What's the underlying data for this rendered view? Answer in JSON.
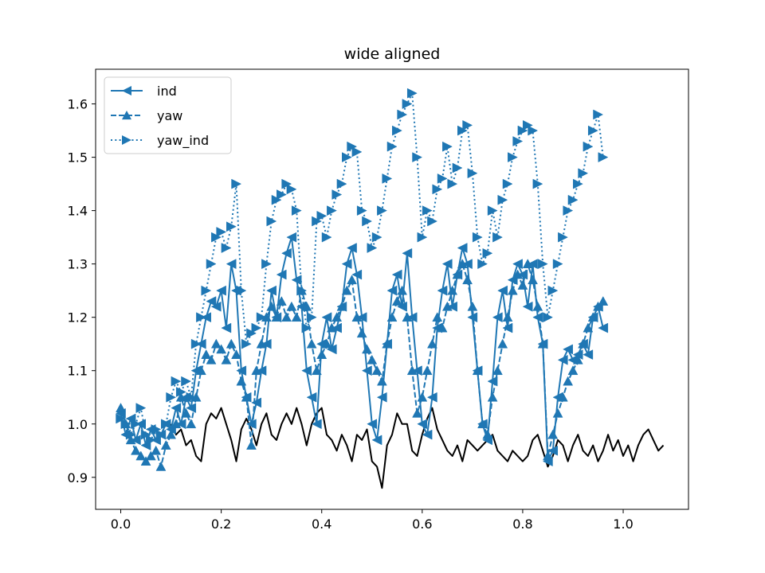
{
  "chart_data": {
    "type": "line",
    "title": "wide aligned",
    "xlabel": "",
    "ylabel": "",
    "xlim": [
      -0.05,
      1.13
    ],
    "ylim": [
      0.84,
      1.665
    ],
    "xticks": [
      0.0,
      0.2,
      0.4,
      0.6,
      0.8,
      1.0
    ],
    "xtick_labels": [
      "0.0",
      "0.2",
      "0.4",
      "0.6",
      "0.8",
      "1.0"
    ],
    "yticks": [
      0.9,
      1.0,
      1.1,
      1.2,
      1.3,
      1.4,
      1.5,
      1.6
    ],
    "ytick_labels": [
      "0.9",
      "1.0",
      "1.1",
      "1.2",
      "1.3",
      "1.4",
      "1.5",
      "1.6"
    ],
    "grid": false,
    "legend_position": "upper-left",
    "series": [
      {
        "name": "ind",
        "color": "#1f77b4",
        "linestyle": "solid",
        "marker": "triangle-left",
        "x": [
          0.0,
          0.01,
          0.02,
          0.03,
          0.04,
          0.05,
          0.06,
          0.07,
          0.08,
          0.09,
          0.1,
          0.11,
          0.12,
          0.13,
          0.14,
          0.15,
          0.16,
          0.17,
          0.18,
          0.19,
          0.2,
          0.21,
          0.22,
          0.23,
          0.24,
          0.25,
          0.26,
          0.27,
          0.28,
          0.29,
          0.3,
          0.31,
          0.32,
          0.33,
          0.34,
          0.35,
          0.36,
          0.37,
          0.38,
          0.39,
          0.4,
          0.41,
          0.42,
          0.43,
          0.44,
          0.45,
          0.46,
          0.47,
          0.48,
          0.49,
          0.5,
          0.51,
          0.52,
          0.53,
          0.54,
          0.55,
          0.56,
          0.57,
          0.58,
          0.59,
          0.6,
          0.61,
          0.62,
          0.63,
          0.64,
          0.65,
          0.66,
          0.67,
          0.68,
          0.69,
          0.7,
          0.71,
          0.72,
          0.73,
          0.74,
          0.75,
          0.76,
          0.77,
          0.78,
          0.79,
          0.8,
          0.81,
          0.82,
          0.83,
          0.84,
          0.85,
          0.86,
          0.87,
          0.88,
          0.89,
          0.9,
          0.91,
          0.92,
          0.93,
          0.94,
          0.95,
          0.96
        ],
        "y": [
          1.02,
          0.98,
          1.01,
          0.97,
          1.0,
          0.96,
          0.99,
          0.97,
          0.98,
          1.0,
          0.99,
          1.03,
          1.0,
          1.05,
          1.03,
          1.1,
          1.15,
          1.2,
          1.23,
          1.22,
          1.25,
          1.18,
          1.3,
          1.25,
          1.1,
          1.05,
          1.0,
          1.04,
          1.1,
          1.15,
          1.25,
          1.2,
          1.28,
          1.32,
          1.35,
          1.27,
          1.22,
          1.1,
          1.05,
          1.0,
          1.15,
          1.2,
          1.14,
          1.18,
          1.22,
          1.3,
          1.33,
          1.28,
          1.2,
          1.1,
          1.0,
          0.97,
          1.05,
          1.15,
          1.25,
          1.28,
          1.22,
          1.32,
          1.2,
          1.1,
          1.0,
          0.98,
          1.05,
          1.18,
          1.25,
          1.3,
          1.22,
          1.28,
          1.33,
          1.3,
          1.2,
          1.1,
          1.0,
          0.97,
          1.08,
          1.2,
          1.25,
          1.18,
          1.27,
          1.3,
          1.28,
          1.22,
          1.3,
          1.2,
          1.15,
          0.93,
          0.95,
          1.05,
          1.12,
          1.14,
          1.12,
          1.13,
          1.15,
          1.13,
          1.2,
          1.22,
          1.18
        ]
      },
      {
        "name": "yaw",
        "color": "#1f77b4",
        "linestyle": "dashed",
        "marker": "triangle-up",
        "x": [
          0.0,
          0.01,
          0.02,
          0.03,
          0.04,
          0.05,
          0.06,
          0.07,
          0.08,
          0.09,
          0.1,
          0.11,
          0.12,
          0.13,
          0.14,
          0.15,
          0.16,
          0.17,
          0.18,
          0.19,
          0.2,
          0.21,
          0.22,
          0.23,
          0.24,
          0.25,
          0.26,
          0.27,
          0.28,
          0.29,
          0.3,
          0.31,
          0.32,
          0.33,
          0.34,
          0.35,
          0.36,
          0.37,
          0.38,
          0.39,
          0.4,
          0.41,
          0.42,
          0.43,
          0.44,
          0.45,
          0.46,
          0.47,
          0.48,
          0.49,
          0.5,
          0.51,
          0.52,
          0.53,
          0.54,
          0.55,
          0.56,
          0.57,
          0.58,
          0.59,
          0.6,
          0.61,
          0.62,
          0.63,
          0.64,
          0.65,
          0.66,
          0.67,
          0.68,
          0.69,
          0.7,
          0.71,
          0.72,
          0.73,
          0.74,
          0.75,
          0.76,
          0.77,
          0.78,
          0.79,
          0.8,
          0.81,
          0.82,
          0.83,
          0.84,
          0.85,
          0.86,
          0.87,
          0.88,
          0.89,
          0.9,
          0.91,
          0.92,
          0.93,
          0.94,
          0.95,
          0.96
        ],
        "y": [
          1.03,
          1.0,
          0.97,
          0.95,
          0.94,
          0.93,
          0.94,
          0.95,
          0.92,
          0.96,
          0.98,
          1.0,
          1.05,
          1.02,
          1.0,
          1.05,
          1.1,
          1.13,
          1.12,
          1.15,
          1.14,
          1.12,
          1.15,
          1.13,
          1.08,
          1.05,
          0.96,
          1.1,
          1.15,
          1.2,
          1.22,
          1.2,
          1.23,
          1.2,
          1.22,
          1.2,
          1.25,
          1.22,
          1.15,
          1.1,
          1.13,
          1.15,
          1.18,
          1.2,
          1.22,
          1.25,
          1.27,
          1.2,
          1.17,
          1.14,
          1.12,
          1.1,
          1.08,
          1.15,
          1.2,
          1.23,
          1.25,
          1.2,
          1.1,
          1.02,
          1.05,
          1.1,
          1.15,
          1.2,
          1.18,
          1.22,
          1.25,
          1.28,
          1.3,
          1.27,
          1.22,
          1.1,
          1.0,
          0.98,
          1.05,
          1.1,
          1.15,
          1.2,
          1.25,
          1.28,
          1.26,
          1.3,
          1.27,
          1.22,
          1.15,
          0.94,
          0.98,
          1.02,
          1.05,
          1.08,
          1.1,
          1.12,
          1.15,
          1.18,
          1.2,
          1.22,
          1.23
        ]
      },
      {
        "name": "yaw_ind",
        "color": "#1f77b4",
        "linestyle": "dotted",
        "marker": "triangle-right",
        "x": [
          0.0,
          0.01,
          0.02,
          0.03,
          0.04,
          0.05,
          0.06,
          0.07,
          0.08,
          0.09,
          0.1,
          0.11,
          0.12,
          0.13,
          0.14,
          0.15,
          0.16,
          0.17,
          0.18,
          0.19,
          0.2,
          0.21,
          0.22,
          0.23,
          0.24,
          0.25,
          0.26,
          0.27,
          0.28,
          0.29,
          0.3,
          0.31,
          0.32,
          0.33,
          0.34,
          0.35,
          0.36,
          0.37,
          0.38,
          0.39,
          0.4,
          0.41,
          0.42,
          0.43,
          0.44,
          0.45,
          0.46,
          0.47,
          0.48,
          0.49,
          0.5,
          0.51,
          0.52,
          0.53,
          0.54,
          0.55,
          0.56,
          0.57,
          0.58,
          0.59,
          0.6,
          0.61,
          0.62,
          0.63,
          0.64,
          0.65,
          0.66,
          0.67,
          0.68,
          0.69,
          0.7,
          0.71,
          0.72,
          0.73,
          0.74,
          0.75,
          0.76,
          0.77,
          0.78,
          0.79,
          0.8,
          0.81,
          0.82,
          0.83,
          0.84,
          0.85,
          0.86,
          0.87,
          0.88,
          0.89,
          0.9,
          0.91,
          0.92,
          0.93,
          0.94,
          0.95,
          0.96
        ],
        "y": [
          1.01,
          1.0,
          0.98,
          1.0,
          1.03,
          0.98,
          0.97,
          0.99,
          0.98,
          1.0,
          1.05,
          1.08,
          1.06,
          1.08,
          1.05,
          1.15,
          1.2,
          1.25,
          1.3,
          1.35,
          1.36,
          1.33,
          1.37,
          1.45,
          1.25,
          1.15,
          1.17,
          1.18,
          1.2,
          1.3,
          1.38,
          1.42,
          1.43,
          1.45,
          1.44,
          1.4,
          1.25,
          1.18,
          1.2,
          1.38,
          1.39,
          1.35,
          1.4,
          1.43,
          1.45,
          1.5,
          1.52,
          1.51,
          1.4,
          1.38,
          1.33,
          1.35,
          1.4,
          1.46,
          1.52,
          1.55,
          1.58,
          1.6,
          1.62,
          1.5,
          1.35,
          1.4,
          1.38,
          1.44,
          1.46,
          1.52,
          1.45,
          1.48,
          1.55,
          1.56,
          1.47,
          1.35,
          1.3,
          1.32,
          1.4,
          1.35,
          1.42,
          1.45,
          1.5,
          1.53,
          1.55,
          1.56,
          1.55,
          1.45,
          1.3,
          1.2,
          1.25,
          1.3,
          1.35,
          1.4,
          1.42,
          1.45,
          1.47,
          1.52,
          1.55,
          1.58,
          1.5
        ]
      },
      {
        "name": "",
        "color": "#000000",
        "linestyle": "solid",
        "marker": "none",
        "x": [
          0.1,
          0.11,
          0.12,
          0.13,
          0.14,
          0.15,
          0.16,
          0.17,
          0.18,
          0.19,
          0.2,
          0.21,
          0.22,
          0.23,
          0.24,
          0.25,
          0.26,
          0.27,
          0.28,
          0.29,
          0.3,
          0.31,
          0.32,
          0.33,
          0.34,
          0.35,
          0.36,
          0.37,
          0.38,
          0.39,
          0.4,
          0.41,
          0.42,
          0.43,
          0.44,
          0.45,
          0.46,
          0.47,
          0.48,
          0.49,
          0.5,
          0.51,
          0.52,
          0.53,
          0.54,
          0.55,
          0.56,
          0.57,
          0.58,
          0.59,
          0.6,
          0.61,
          0.62,
          0.63,
          0.64,
          0.65,
          0.66,
          0.67,
          0.68,
          0.69,
          0.7,
          0.71,
          0.72,
          0.73,
          0.74,
          0.75,
          0.76,
          0.77,
          0.78,
          0.79,
          0.8,
          0.81,
          0.82,
          0.83,
          0.84,
          0.85,
          0.86,
          0.87,
          0.88,
          0.89,
          0.9,
          0.91,
          0.92,
          0.93,
          0.94,
          0.95,
          0.96,
          0.97,
          0.98,
          0.99,
          1.0,
          1.01,
          1.02,
          1.03,
          1.04,
          1.05,
          1.06,
          1.07,
          1.08
        ],
        "y": [
          1.0,
          0.98,
          0.99,
          0.96,
          0.97,
          0.94,
          0.93,
          1.0,
          1.02,
          1.01,
          1.03,
          1.0,
          0.97,
          0.93,
          0.99,
          1.01,
          0.99,
          0.96,
          1.0,
          1.02,
          0.98,
          0.97,
          1.0,
          1.02,
          1.0,
          1.03,
          1.0,
          0.96,
          1.0,
          1.02,
          1.03,
          0.98,
          0.97,
          0.95,
          0.98,
          0.96,
          0.93,
          0.98,
          0.97,
          0.99,
          0.93,
          0.92,
          0.88,
          0.96,
          0.98,
          1.02,
          1.0,
          1.0,
          0.95,
          0.94,
          0.98,
          1.01,
          1.03,
          0.99,
          0.97,
          0.95,
          0.94,
          0.96,
          0.93,
          0.97,
          0.96,
          0.95,
          0.96,
          0.97,
          0.98,
          0.95,
          0.94,
          0.93,
          0.95,
          0.94,
          0.93,
          0.94,
          0.97,
          0.98,
          0.95,
          0.92,
          0.94,
          0.97,
          0.96,
          0.93,
          0.96,
          0.98,
          0.95,
          0.94,
          0.96,
          0.93,
          0.95,
          0.98,
          0.95,
          0.97,
          0.94,
          0.96,
          0.93,
          0.96,
          0.98,
          0.99,
          0.97,
          0.95,
          0.96
        ]
      }
    ]
  }
}
